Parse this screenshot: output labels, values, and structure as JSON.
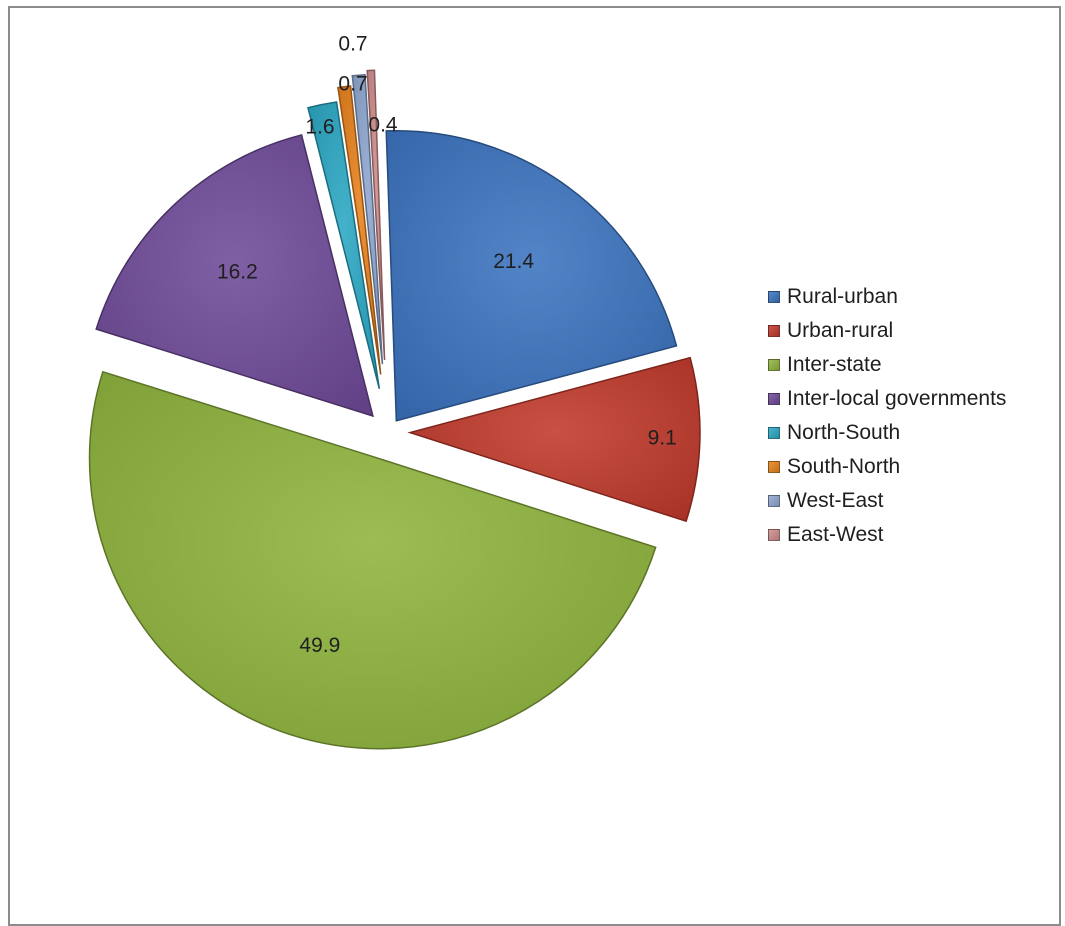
{
  "chart_data": {
    "type": "pie",
    "title": "",
    "legend_position": "right",
    "slices": [
      {
        "name": "Rural-urban",
        "value": 21.4,
        "label": "21.4",
        "color": "#3a73bf"
      },
      {
        "name": "Urban-rural",
        "value": 9.1,
        "label": "9.1",
        "color": "#c0392b"
      },
      {
        "name": "Inter-state",
        "value": 49.9,
        "label": "49.9",
        "color": "#8fb33d"
      },
      {
        "name": "Inter-local governments",
        "value": 16.2,
        "label": "16.2",
        "color": "#6f4a99"
      },
      {
        "name": "North-South",
        "value": 1.6,
        "label": "1.6",
        "color": "#2aa7c4"
      },
      {
        "name": "South-North",
        "value": 0.7,
        "label": "0.7",
        "color": "#e8811c"
      },
      {
        "name": "West-East",
        "value": 0.7,
        "label": "0.7",
        "color": "#8ea6d0"
      },
      {
        "name": "East-West",
        "value": 0.4,
        "label": "0.4",
        "color": "#cf8c8c"
      }
    ]
  }
}
